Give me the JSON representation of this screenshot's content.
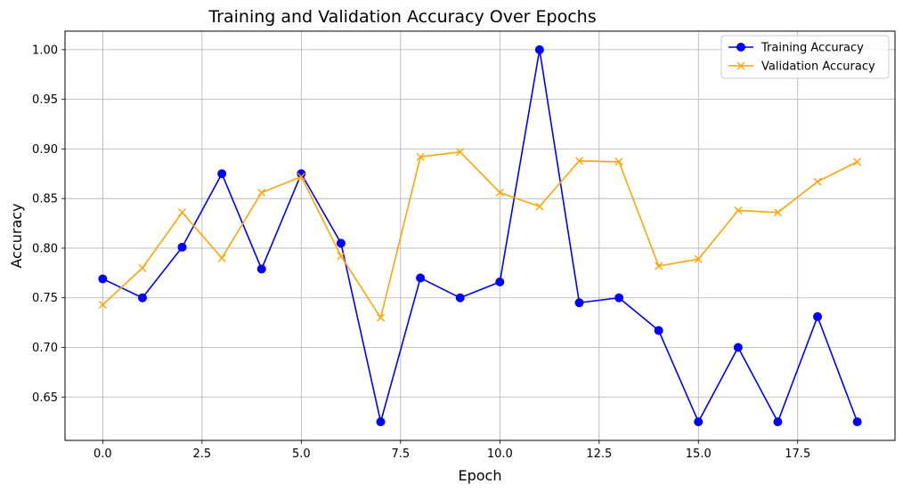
{
  "chart_data": {
    "type": "line",
    "title": "Training and Validation Accuracy Over Epochs",
    "xlabel": "Epoch",
    "ylabel": "Accuracy",
    "xlim": [
      -0.95,
      19.95
    ],
    "ylim": [
      0.6063,
      1.0187
    ],
    "xticks": [
      0.0,
      2.5,
      5.0,
      7.5,
      10.0,
      12.5,
      15.0,
      17.5
    ],
    "xtick_labels": [
      "0.0",
      "2.5",
      "5.0",
      "7.5",
      "10.0",
      "12.5",
      "15.0",
      "17.5"
    ],
    "yticks": [
      0.65,
      0.7,
      0.75,
      0.8,
      0.85,
      0.9,
      0.95,
      1.0
    ],
    "ytick_labels": [
      "0.65",
      "0.70",
      "0.75",
      "0.80",
      "0.85",
      "0.90",
      "0.95",
      "1.00"
    ],
    "grid": true,
    "legend_position": "top-right",
    "x": [
      0,
      1,
      2,
      3,
      4,
      5,
      6,
      7,
      8,
      9,
      10,
      11,
      12,
      13,
      14,
      15,
      16,
      17,
      18,
      19
    ],
    "series": [
      {
        "name": "Training Accuracy",
        "color": "#0000ff",
        "marker": "circle",
        "values": [
          0.769,
          0.75,
          0.801,
          0.875,
          0.779,
          0.875,
          0.805,
          0.625,
          0.77,
          0.75,
          0.766,
          1.0,
          0.745,
          0.75,
          0.717,
          0.625,
          0.7,
          0.625,
          0.731,
          0.625
        ]
      },
      {
        "name": "Validation Accuracy",
        "color": "#ffa500",
        "marker": "x",
        "values": [
          0.743,
          0.78,
          0.836,
          0.79,
          0.856,
          0.872,
          0.792,
          0.73,
          0.892,
          0.897,
          0.856,
          0.842,
          0.888,
          0.887,
          0.782,
          0.789,
          0.838,
          0.836,
          0.867,
          0.887
        ]
      }
    ]
  }
}
